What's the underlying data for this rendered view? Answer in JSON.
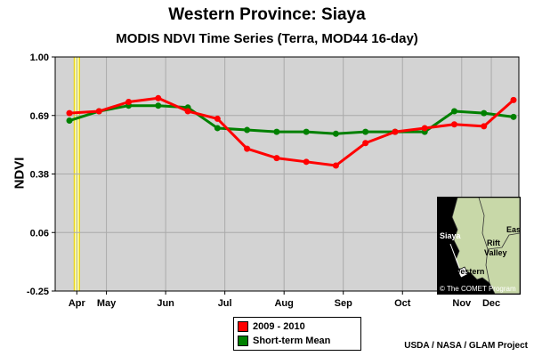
{
  "header": {
    "title": "Western Province: Siaya",
    "subtitle": "MODIS NDVI Time Series (Terra, MOD44 16-day)"
  },
  "legend": {
    "items": [
      {
        "label": "2009 - 2010",
        "color": "#ff0000"
      },
      {
        "label": "Short-term Mean",
        "color": "#008000"
      }
    ]
  },
  "footer": {
    "credit": "USDA / NASA / GLAM Project"
  },
  "inset_map": {
    "labels": [
      "Siaya",
      "Western",
      "Rift",
      "Valley",
      "Eas"
    ],
    "copyright": "© The COMET Program"
  },
  "colors": {
    "plot_background": "#d3d3d3",
    "grid": "#aaaaaa",
    "highlight_band": "#ffff99",
    "series_red": "#ff0000",
    "series_green": "#008000",
    "map_land": "#c8d8a8",
    "map_dark": "#000000"
  },
  "chart_data": {
    "type": "line",
    "title": "Western Province: Siaya",
    "subtitle": "MODIS NDVI Time Series (Terra, MOD44 16-day)",
    "xlabel": "",
    "ylabel": "NDVI",
    "ylim": [
      -0.25,
      1.0
    ],
    "yticks": [
      "1.00",
      "0.69",
      "0.38",
      "0.06",
      "-0.25"
    ],
    "xlim": [
      0,
      17
    ],
    "xticks": [
      {
        "label": "Apr",
        "x": 0.25
      },
      {
        "label": "May",
        "x": 1.25
      },
      {
        "label": "Jun",
        "x": 3.25
      },
      {
        "label": "Jul",
        "x": 5.25
      },
      {
        "label": "Aug",
        "x": 7.25
      },
      {
        "label": "Sep",
        "x": 9.25
      },
      {
        "label": "Oct",
        "x": 11.25
      },
      {
        "label": "Nov",
        "x": 13.25
      },
      {
        "label": "Dec",
        "x": 14.25
      }
    ],
    "highlight_x": 0.25,
    "grid": true,
    "legend_position": "bottom-center",
    "series": [
      {
        "name": "2009 - 2010",
        "color": "#ff0000",
        "x": [
          0,
          1,
          2,
          3,
          4,
          5,
          6,
          7,
          8,
          9,
          10,
          11,
          12,
          13,
          14,
          15
        ],
        "values": [
          0.7,
          0.71,
          0.76,
          0.78,
          0.71,
          0.67,
          0.51,
          0.46,
          0.44,
          0.42,
          0.54,
          0.6,
          0.62,
          0.64,
          0.63,
          0.77
        ]
      },
      {
        "name": "Short-term Mean",
        "color": "#008000",
        "x": [
          0,
          1,
          2,
          3,
          4,
          5,
          6,
          7,
          8,
          9,
          10,
          11,
          12,
          13,
          14,
          15
        ],
        "values": [
          0.66,
          0.71,
          0.74,
          0.74,
          0.73,
          0.62,
          0.61,
          0.6,
          0.6,
          0.59,
          0.6,
          0.6,
          0.6,
          0.71,
          0.7,
          0.68
        ]
      }
    ]
  }
}
